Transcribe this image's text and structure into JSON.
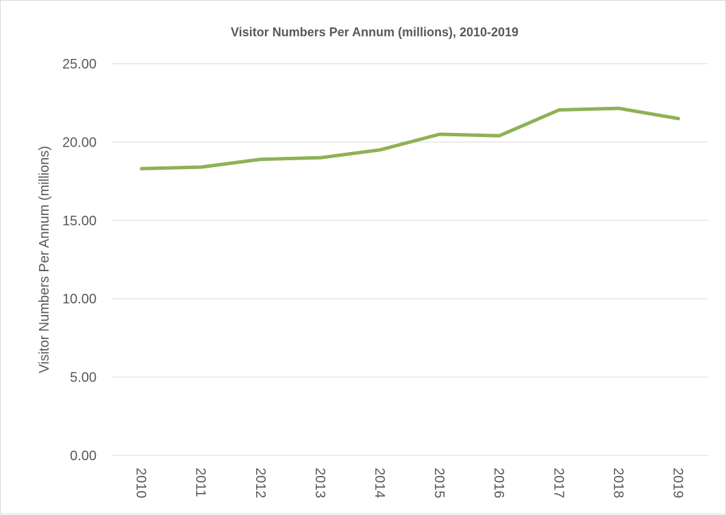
{
  "chart_data": {
    "type": "line",
    "title": "Visitor Numbers Per Annum (millions), 2010-2019",
    "xlabel": "",
    "ylabel": "Visitor Numbers Per Annum (millions)",
    "categories": [
      "2010",
      "2011",
      "2012",
      "2013",
      "2014",
      "2015",
      "2016",
      "2017",
      "2018",
      "2019"
    ],
    "series": [
      {
        "values": [
          18.3,
          18.4,
          18.9,
          19.0,
          19.5,
          20.5,
          20.4,
          22.05,
          22.15,
          21.5
        ],
        "color": "#8db255"
      }
    ],
    "ylim": [
      0,
      25
    ],
    "yticks": [
      "0.00",
      "5.00",
      "10.00",
      "15.00",
      "20.00",
      "25.00"
    ],
    "grid": true,
    "legend": "none"
  }
}
